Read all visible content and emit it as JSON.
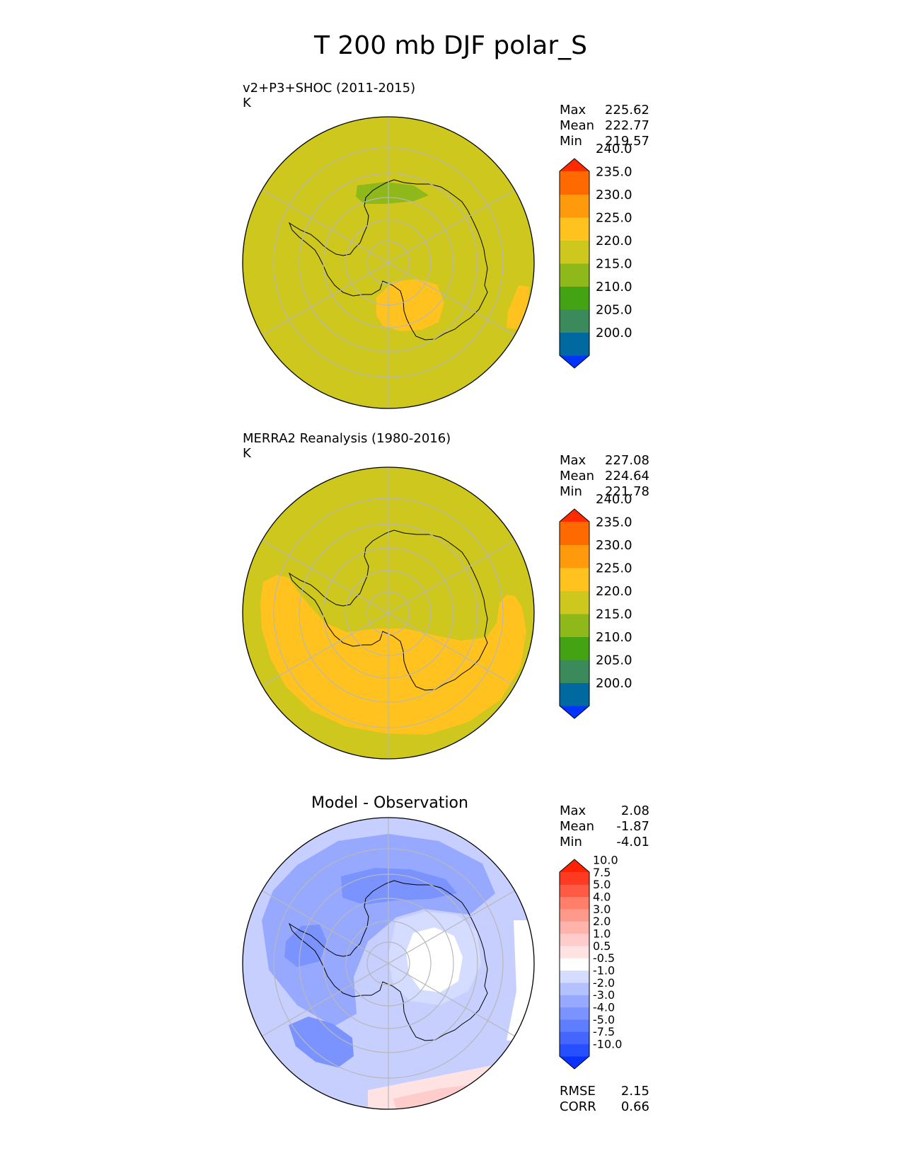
{
  "title": "T 200 mb DJF polar_S",
  "chart_data": [
    {
      "type": "heatmap",
      "projection": "south-polar-stereographic",
      "title": "v2+P3+SHOC (2011-2015)",
      "units": "K",
      "stats": [
        {
          "label": "Max",
          "value": "225.62"
        },
        {
          "label": "Mean",
          "value": "222.77"
        },
        {
          "label": "Min",
          "value": "219.57"
        }
      ],
      "colorbar": {
        "levels": [
          200,
          205,
          210,
          215,
          220,
          225,
          230,
          235,
          240
        ],
        "tick_labels": [
          "200.0",
          "205.0",
          "210.0",
          "215.0",
          "220.0",
          "225.0",
          "230.0",
          "235.0",
          "240.0"
        ],
        "colors": [
          "#0033ff",
          "#006aa0",
          "#3a8a5c",
          "#44a313",
          "#8fb81b",
          "#cdc71e",
          "#ffc21f",
          "#ff9a0d",
          "#ff6a00",
          "#ff2a00"
        ]
      },
      "background_color": "#cdc71e"
    },
    {
      "type": "heatmap",
      "projection": "south-polar-stereographic",
      "title": "MERRA2 Reanalysis (1980-2016)",
      "units": "K",
      "stats": [
        {
          "label": "Max",
          "value": "227.08"
        },
        {
          "label": "Mean",
          "value": "224.64"
        },
        {
          "label": "Min",
          "value": "221.78"
        }
      ],
      "colorbar": {
        "levels": [
          200,
          205,
          210,
          215,
          220,
          225,
          230,
          235,
          240
        ],
        "tick_labels": [
          "200.0",
          "205.0",
          "210.0",
          "215.0",
          "220.0",
          "225.0",
          "230.0",
          "235.0",
          "240.0"
        ],
        "colors": [
          "#0033ff",
          "#006aa0",
          "#3a8a5c",
          "#44a313",
          "#8fb81b",
          "#cdc71e",
          "#ffc21f",
          "#ff9a0d",
          "#ff6a00",
          "#ff2a00"
        ]
      },
      "background_color": "#cdc71e"
    },
    {
      "type": "heatmap",
      "projection": "south-polar-stereographic",
      "title": "Model - Observation",
      "units": "",
      "stats": [
        {
          "label": "Max",
          "value": "2.08"
        },
        {
          "label": "Mean",
          "value": "-1.87"
        },
        {
          "label": "Min",
          "value": "-4.01"
        }
      ],
      "extra_stats": [
        {
          "label": "RMSE",
          "value": "2.15"
        },
        {
          "label": "CORR",
          "value": "0.66"
        }
      ],
      "colorbar": {
        "levels": [
          -10,
          -7.5,
          -5,
          -4,
          -3,
          -2,
          -1,
          -0.5,
          0.5,
          1,
          2,
          3,
          4,
          5,
          7.5,
          10
        ],
        "tick_labels": [
          "-10.0",
          "-7.5",
          "-5.0",
          "-4.0",
          "-3.0",
          "-2.0",
          "-1.0",
          "-0.5",
          "0.5",
          "1.0",
          "2.0",
          "3.0",
          "4.0",
          "5.0",
          "7.5",
          "10.0"
        ],
        "colors": [
          "#0a32ff",
          "#2650ff",
          "#4466ff",
          "#5f7dff",
          "#7b93ff",
          "#97a9ff",
          "#b3c2ff",
          "#d4dcff",
          "#ffffff",
          "#ffe3e3",
          "#ffcccc",
          "#ffb3aa",
          "#ff9a8a",
          "#ff7f6a",
          "#ff5a44",
          "#ff3a22",
          "#ff2200"
        ]
      },
      "background_color": "#c6cffd"
    }
  ]
}
